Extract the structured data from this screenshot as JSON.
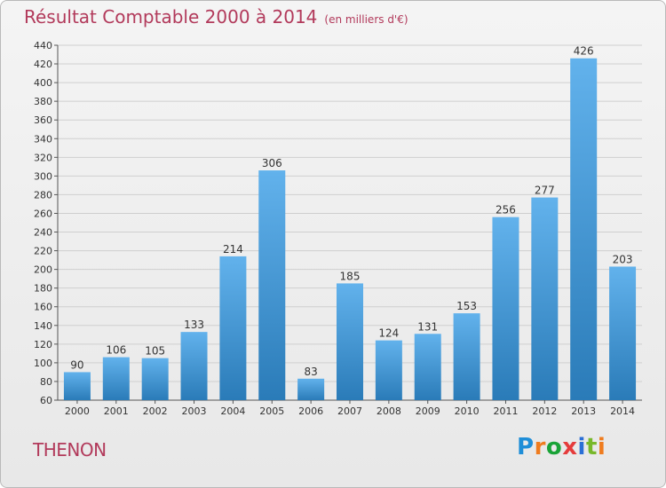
{
  "title": "Résultat Comptable 2000 à 2014",
  "subtitle": "(en milliers d'€)",
  "commune": "THENON",
  "logo": {
    "letters": [
      "P",
      "r",
      "o",
      "x",
      "i",
      "t",
      "i"
    ],
    "colors": [
      "#1f8ed8",
      "#ef7c1f",
      "#19a337",
      "#e53c3c",
      "#2a6fd6",
      "#77b82a",
      "#ef7c1f"
    ]
  },
  "colors": {
    "bar_top": "#62b2ec",
    "bar_bottom": "#2a7bb8",
    "grid": "#cfcfcf",
    "title": "#b23a5b"
  },
  "chart_data": {
    "type": "bar",
    "categories": [
      "2000",
      "2001",
      "2002",
      "2003",
      "2004",
      "2005",
      "2006",
      "2007",
      "2008",
      "2009",
      "2010",
      "2011",
      "2012",
      "2013",
      "2014"
    ],
    "values": [
      90,
      106,
      105,
      133,
      214,
      306,
      83,
      185,
      124,
      131,
      153,
      256,
      277,
      426,
      203
    ],
    "data_labels": [
      "90",
      "106",
      "105",
      "133",
      "214",
      "306",
      "83",
      "185",
      "124",
      "131",
      "153",
      "256",
      "277",
      "426",
      "203"
    ],
    "title": "Résultat Comptable 2000 à 2014",
    "xlabel": "",
    "ylabel": "",
    "ylim": [
      60,
      440
    ],
    "yticks": [
      "60",
      "80",
      "100",
      "120",
      "140",
      "160",
      "180",
      "200",
      "220",
      "240",
      "260",
      "280",
      "300",
      "320",
      "340",
      "360",
      "380",
      "400",
      "420",
      "440"
    ],
    "grid": true
  }
}
